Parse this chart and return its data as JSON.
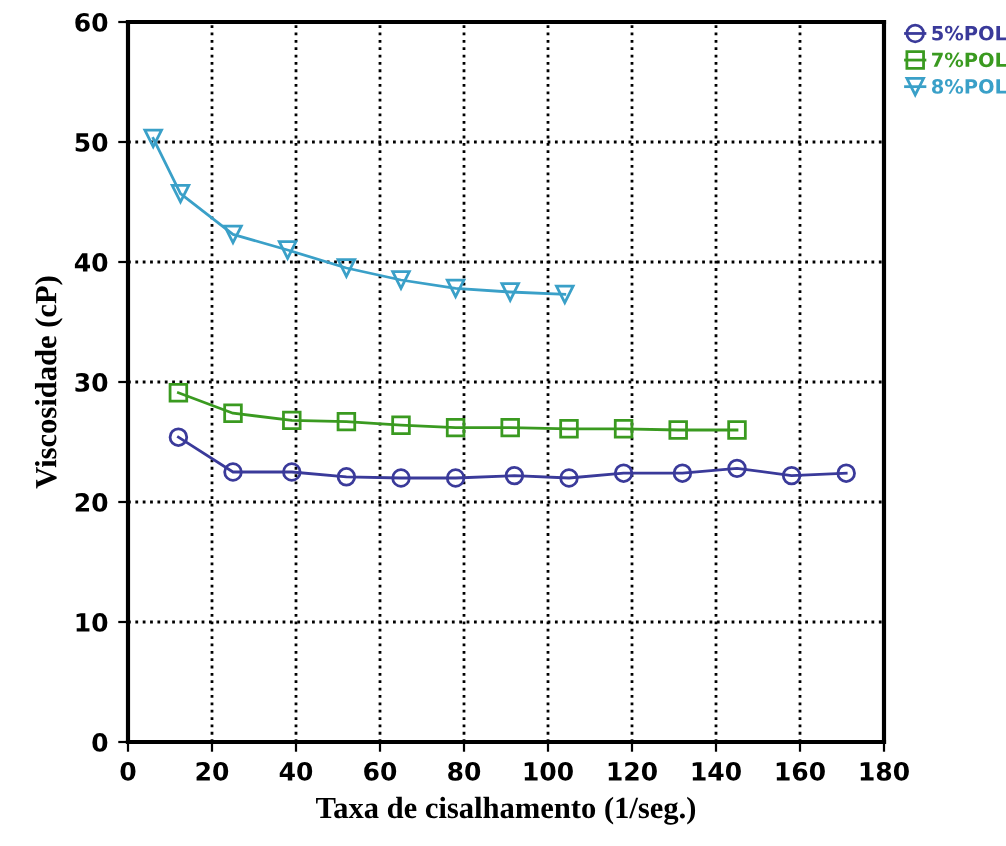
{
  "chart_data": {
    "type": "line",
    "xlabel": "Taxa de cisalhamento (1/seg.)",
    "ylabel": "Viscosidade (cP)",
    "xlim": [
      0,
      180
    ],
    "xticks": [
      0,
      20,
      40,
      60,
      80,
      100,
      120,
      140,
      160,
      180
    ],
    "ylim": [
      0,
      60
    ],
    "yticks": [
      0,
      10,
      20,
      30,
      40,
      50,
      60
    ],
    "grid": true,
    "legend": "top right",
    "line_style": "solid",
    "series": [
      {
        "name": "5%POL",
        "color": "#3a3a9a",
        "marker": "circle",
        "x": [
          12,
          25,
          39,
          52,
          65,
          78,
          92,
          105,
          118,
          132,
          145,
          158,
          171
        ],
        "values": [
          25.4,
          22.5,
          22.5,
          22.1,
          22.0,
          22.0,
          22.2,
          22.0,
          22.4,
          22.4,
          22.8,
          22.2,
          22.4
        ]
      },
      {
        "name": "7%POL",
        "color": "#3a9a20",
        "marker": "square",
        "x": [
          12,
          25,
          39,
          52,
          65,
          78,
          91,
          105,
          118,
          131,
          145
        ],
        "values": [
          29.1,
          27.4,
          26.8,
          26.7,
          26.4,
          26.2,
          26.2,
          26.1,
          26.1,
          26.0,
          26.0
        ]
      },
      {
        "name": "8%POL",
        "color": "#3aa0c8",
        "marker": "triangle",
        "x": [
          6,
          12.5,
          25,
          38,
          52,
          65,
          78,
          91,
          104
        ],
        "values": [
          50.3,
          45.7,
          42.3,
          41.0,
          39.5,
          38.5,
          37.8,
          37.5,
          37.3
        ]
      }
    ]
  }
}
